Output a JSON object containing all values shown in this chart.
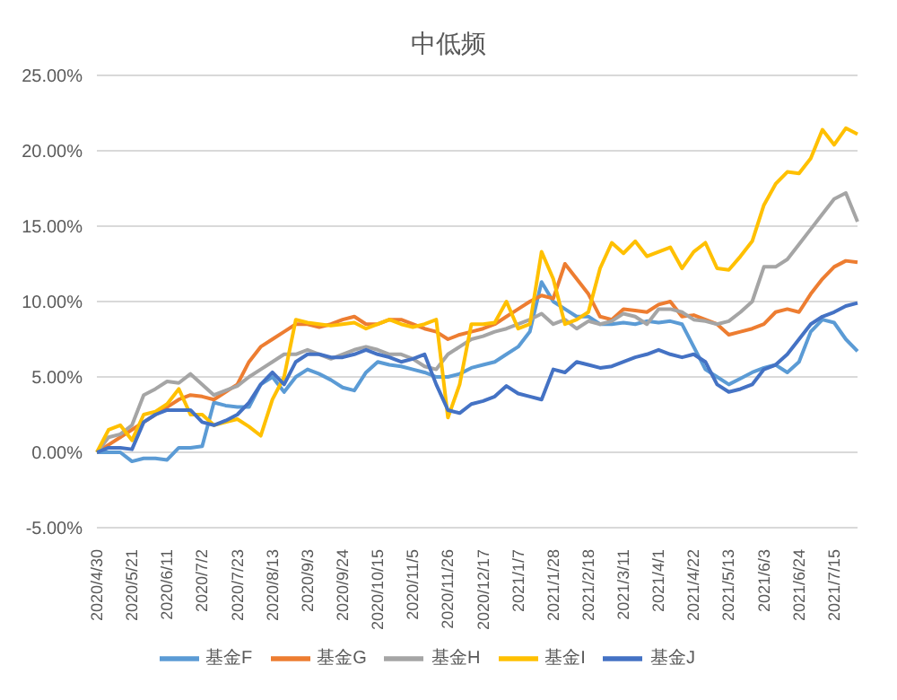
{
  "chart_data": {
    "type": "line",
    "title": "中低频",
    "categories": [
      "2020/4/30",
      null,
      null,
      "2020/5/21",
      null,
      null,
      "2020/6/11",
      null,
      null,
      "2020/7/2",
      null,
      null,
      "2020/7/23",
      null,
      null,
      "2020/8/13",
      null,
      null,
      "2020/9/3",
      null,
      null,
      "2020/9/24",
      null,
      null,
      "2020/10/15",
      null,
      null,
      "2020/11/5",
      null,
      null,
      "2020/11/26",
      null,
      null,
      "2020/12/17",
      null,
      null,
      "2021/1/7",
      null,
      null,
      "2021/1/28",
      null,
      null,
      "2021/2/18",
      null,
      null,
      "2021/3/11",
      null,
      null,
      "2021/4/1",
      null,
      null,
      "2021/4/22",
      null,
      null,
      "2021/5/13",
      null,
      null,
      "2021/6/3",
      null,
      null,
      "2021/6/24",
      null,
      null,
      "2021/7/15",
      null,
      null
    ],
    "series": [
      {
        "name": "基金F",
        "color": "#5b9bd5",
        "values": [
          0,
          0,
          0,
          -0.6,
          -0.4,
          -0.4,
          -0.5,
          0.3,
          0.3,
          0.4,
          3.3,
          3.1,
          3,
          3,
          4.5,
          5,
          4,
          5,
          5.5,
          5.2,
          4.8,
          4.3,
          4.1,
          5.3,
          6,
          5.8,
          5.7,
          5.5,
          5.3,
          5,
          5,
          5.2,
          5.6,
          5.8,
          6,
          6.5,
          7,
          8,
          11.3,
          10,
          9.5,
          9,
          9,
          8.5,
          8.5,
          8.6,
          8.5,
          8.7,
          8.6,
          8.7,
          8.5,
          7,
          5.5,
          5,
          4.5,
          4.9,
          5.3,
          5.6,
          5.8,
          5.3,
          6,
          8,
          8.8,
          8.6,
          7.5,
          6.7
        ]
      },
      {
        "name": "基金G",
        "color": "#ed7d31",
        "values": [
          0,
          0.5,
          1,
          1.5,
          2,
          2.5,
          3,
          3.5,
          3.8,
          3.7,
          3.5,
          4,
          4.5,
          6,
          7,
          7.5,
          8,
          8.5,
          8.5,
          8.3,
          8.5,
          8.8,
          9,
          8.5,
          8.5,
          8.8,
          8.8,
          8.5,
          8.2,
          8,
          7.5,
          7.8,
          8,
          8.2,
          8.5,
          9,
          9.5,
          10,
          10.4,
          10.2,
          12.5,
          11.5,
          10.5,
          9,
          8.8,
          9.5,
          9.4,
          9.3,
          9.8,
          10,
          9,
          9.1,
          8.8,
          8.5,
          7.8,
          8,
          8.2,
          8.5,
          9.3,
          9.5,
          9.3,
          10.5,
          11.5,
          12.3,
          12.7,
          12.6
        ]
      },
      {
        "name": "基金H",
        "color": "#a5a5a5",
        "values": [
          0,
          1,
          1.2,
          1.8,
          3.8,
          4.2,
          4.7,
          4.6,
          5.2,
          4.5,
          3.8,
          4.1,
          4.4,
          5,
          5.5,
          6,
          6.5,
          6.5,
          6.8,
          6.5,
          6.2,
          6.5,
          6.8,
          7,
          6.8,
          6.5,
          6.5,
          6.2,
          5.7,
          5.5,
          6.5,
          7,
          7.5,
          7.7,
          8,
          8.2,
          8.5,
          8.8,
          9.2,
          8.5,
          8.8,
          8.2,
          8.7,
          8.5,
          8.7,
          9.2,
          9,
          8.5,
          9.5,
          9.5,
          9.3,
          8.8,
          8.7,
          8.5,
          8.7,
          9.3,
          10,
          12.3,
          12.3,
          12.8,
          13.8,
          14.8,
          15.8,
          16.8,
          17.2,
          15.3
        ]
      },
      {
        "name": "基金I",
        "color": "#ffc000",
        "values": [
          0,
          1.5,
          1.8,
          0.8,
          2.5,
          2.7,
          3.2,
          4.2,
          2.5,
          2.5,
          1.8,
          2,
          2.2,
          1.7,
          1.1,
          3.5,
          5,
          8.8,
          8.6,
          8.5,
          8.4,
          8.5,
          8.6,
          8.2,
          8.5,
          8.8,
          8.5,
          8.3,
          8.5,
          8.8,
          2.3,
          4.5,
          8.5,
          8.5,
          8.6,
          10,
          8.2,
          8.5,
          13.3,
          11.5,
          8.5,
          8.8,
          9.3,
          12.2,
          13.9,
          13.2,
          14,
          13,
          13.3,
          13.6,
          12.2,
          13.3,
          13.9,
          12.2,
          12.1,
          13,
          14,
          16.4,
          17.8,
          18.6,
          18.5,
          19.5,
          21.4,
          20.4,
          21.5,
          21.1
        ]
      },
      {
        "name": "基金J",
        "color": "#4472c4",
        "values": [
          0,
          0.3,
          0.3,
          0.2,
          2,
          2.5,
          2.8,
          2.8,
          2.8,
          2,
          1.8,
          2.1,
          2.5,
          3.3,
          4.5,
          5.3,
          4.5,
          6,
          6.5,
          6.5,
          6.3,
          6.3,
          6.5,
          6.8,
          6.5,
          6.3,
          6,
          6.2,
          6.5,
          4.5,
          2.8,
          2.6,
          3.2,
          3.4,
          3.7,
          4.4,
          3.9,
          3.7,
          3.5,
          5.5,
          5.3,
          6,
          5.8,
          5.6,
          5.7,
          6,
          6.3,
          6.5,
          6.8,
          6.5,
          6.3,
          6.5,
          6,
          4.5,
          4,
          4.2,
          4.5,
          5.5,
          5.8,
          6.5,
          7.5,
          8.5,
          9,
          9.3,
          9.7,
          9.9
        ]
      }
    ],
    "ylim": [
      -5,
      25
    ],
    "yticks": [
      {
        "value": -5,
        "label": "-5.00%"
      },
      {
        "value": 0,
        "label": "0.00%"
      },
      {
        "value": 5,
        "label": "5.00%"
      },
      {
        "value": 10,
        "label": "10.00%"
      },
      {
        "value": 15,
        "label": "15.00%"
      },
      {
        "value": 20,
        "label": "20.00%"
      },
      {
        "value": 25,
        "label": "25.00%"
      }
    ],
    "grid": "y",
    "legend": "bottom",
    "line_style": "solid"
  }
}
